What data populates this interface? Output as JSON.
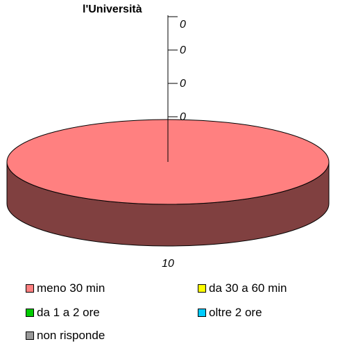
{
  "chart_data": {
    "type": "pie",
    "title": "l'Università",
    "categories": [
      "meno 30 min",
      "da 30 a 60 min",
      "da 1 a 2 ore",
      "oltre 2 ore",
      "non risponde"
    ],
    "values": [
      10,
      0,
      0,
      0,
      0
    ],
    "data_labels": [
      "10"
    ],
    "axis_tick_labels": [
      "0",
      "0",
      "0",
      "0"
    ],
    "colors": [
      "#ff8080",
      "#ffff00",
      "#00cc00",
      "#00ccff",
      "#999999"
    ],
    "side_color": "#804040",
    "legend_position": "bottom",
    "three_d": true
  }
}
